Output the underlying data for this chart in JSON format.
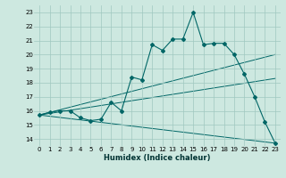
{
  "xlabel": "Humidex (Indice chaleur)",
  "ylabel": "",
  "xlim": [
    -0.5,
    23.5
  ],
  "ylim": [
    13.5,
    23.5
  ],
  "xticks": [
    0,
    1,
    2,
    3,
    4,
    5,
    6,
    7,
    8,
    9,
    10,
    11,
    12,
    13,
    14,
    15,
    16,
    17,
    18,
    19,
    20,
    21,
    22,
    23
  ],
  "yticks": [
    14,
    15,
    16,
    17,
    18,
    19,
    20,
    21,
    22,
    23
  ],
  "bg_color": "#cde8e0",
  "grid_color": "#a0c8c0",
  "line_color": "#006666",
  "main_line": {
    "x": [
      0,
      1,
      2,
      3,
      4,
      5,
      6,
      7,
      8,
      9,
      10,
      11,
      12,
      13,
      14,
      15,
      16,
      17,
      18,
      19,
      20,
      21,
      22,
      23
    ],
    "y": [
      15.7,
      15.9,
      16.0,
      16.0,
      15.5,
      15.3,
      15.4,
      16.6,
      16.0,
      18.4,
      18.2,
      20.7,
      20.3,
      21.1,
      21.1,
      23.0,
      20.7,
      20.8,
      20.8,
      20.0,
      18.6,
      17.0,
      15.2,
      13.7
    ]
  },
  "straight_lines": [
    {
      "x": [
        0,
        23
      ],
      "y": [
        15.7,
        20.0
      ]
    },
    {
      "x": [
        0,
        23
      ],
      "y": [
        15.7,
        18.3
      ]
    },
    {
      "x": [
        0,
        23
      ],
      "y": [
        15.7,
        13.7
      ]
    }
  ]
}
